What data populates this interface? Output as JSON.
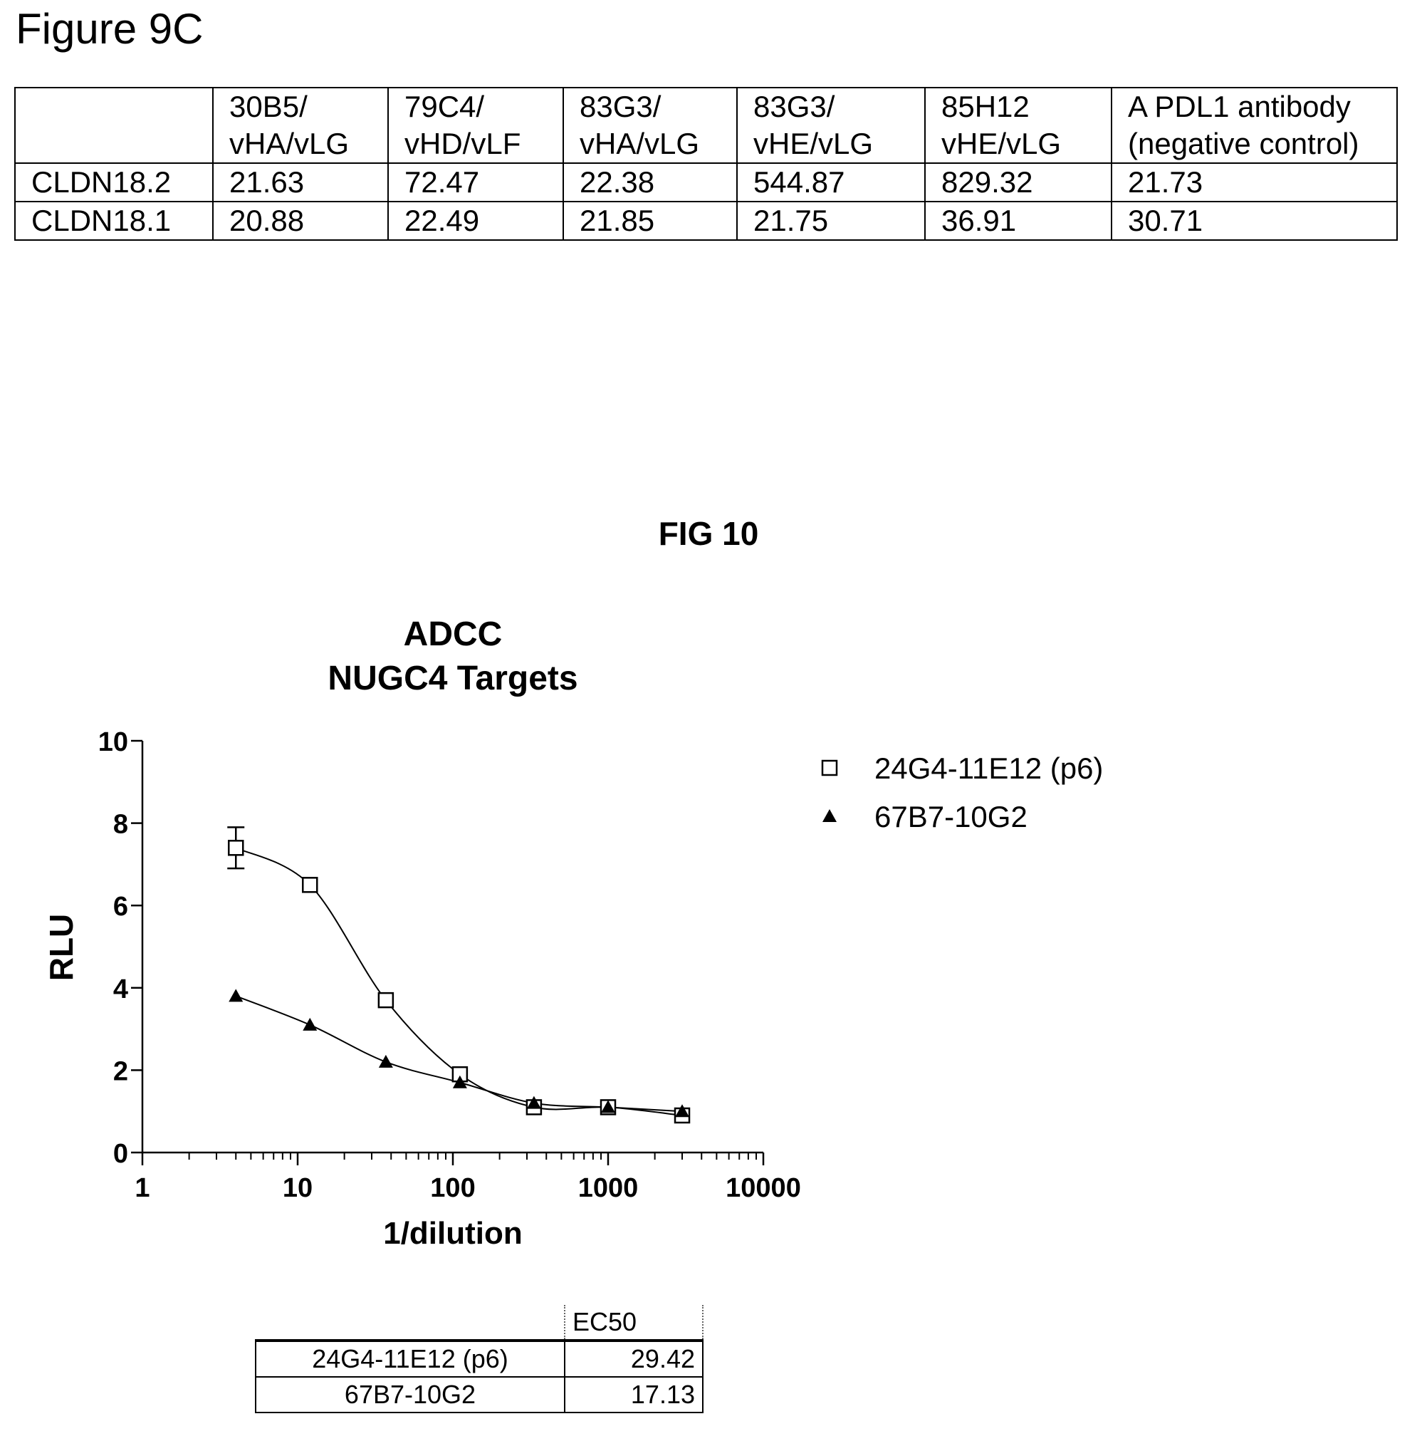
{
  "fig9c": {
    "title": "Figure 9C",
    "columns": [
      {
        "line1": "",
        "line2": ""
      },
      {
        "line1": "30B5/",
        "line2": "vHA/vLG"
      },
      {
        "line1": "79C4/",
        "line2": "vHD/vLF"
      },
      {
        "line1": "83G3/",
        "line2": "vHA/vLG"
      },
      {
        "line1": "83G3/",
        "line2": "vHE/vLG"
      },
      {
        "line1": "85H12",
        "line2": "vHE/vLG"
      },
      {
        "line1": "A PDL1 antibody",
        "line2": "(negative control)"
      }
    ],
    "rows": [
      {
        "label": "CLDN18.2",
        "values": [
          "21.63",
          "72.47",
          "22.38",
          "544.87",
          "829.32",
          "21.73"
        ]
      },
      {
        "label": "CLDN18.1",
        "values": [
          "20.88",
          "22.49",
          "21.85",
          "21.75",
          "36.91",
          "30.71"
        ]
      }
    ]
  },
  "fig10": {
    "title": "FIG 10"
  },
  "chart_data": {
    "type": "scatter",
    "title": "ADCC",
    "subtitle": "NUGC4 Targets",
    "xlabel": "1/dilution",
    "ylabel": "RLU",
    "x_scale": "log",
    "xlim": [
      1,
      10000
    ],
    "ylim": [
      0,
      10
    ],
    "x_ticks": [
      1,
      10,
      100,
      1000,
      10000
    ],
    "x_tick_labels": [
      "1",
      "10",
      "100",
      "1000",
      "10000"
    ],
    "y_ticks": [
      0,
      2,
      4,
      6,
      8,
      10
    ],
    "y_tick_labels": [
      "0",
      "2",
      "4",
      "6",
      "8",
      "10"
    ],
    "grid": false,
    "legend_position": "right",
    "fitted_curves": true,
    "series": [
      {
        "name": "24G4-11E12 (p6)",
        "marker": "open-square",
        "x": [
          4,
          12,
          37,
          111,
          333,
          1000,
          3000
        ],
        "y": [
          7.4,
          6.5,
          3.7,
          1.9,
          1.1,
          1.1,
          0.9
        ],
        "error": [
          0.5,
          0,
          0,
          0,
          0,
          0,
          0
        ]
      },
      {
        "name": "67B7-10G2",
        "marker": "filled-triangle",
        "x": [
          4,
          12,
          37,
          111,
          333,
          1000,
          3000
        ],
        "y": [
          3.8,
          3.1,
          2.2,
          1.7,
          1.2,
          1.1,
          1.0
        ],
        "error": [
          0,
          0,
          0,
          0,
          0,
          0,
          0
        ]
      }
    ]
  },
  "ec50_table": {
    "header": "EC50",
    "rows": [
      {
        "name": "24G4-11E12 (p6)",
        "value": "29.42"
      },
      {
        "name": "67B7-10G2",
        "value": "17.13"
      }
    ]
  }
}
